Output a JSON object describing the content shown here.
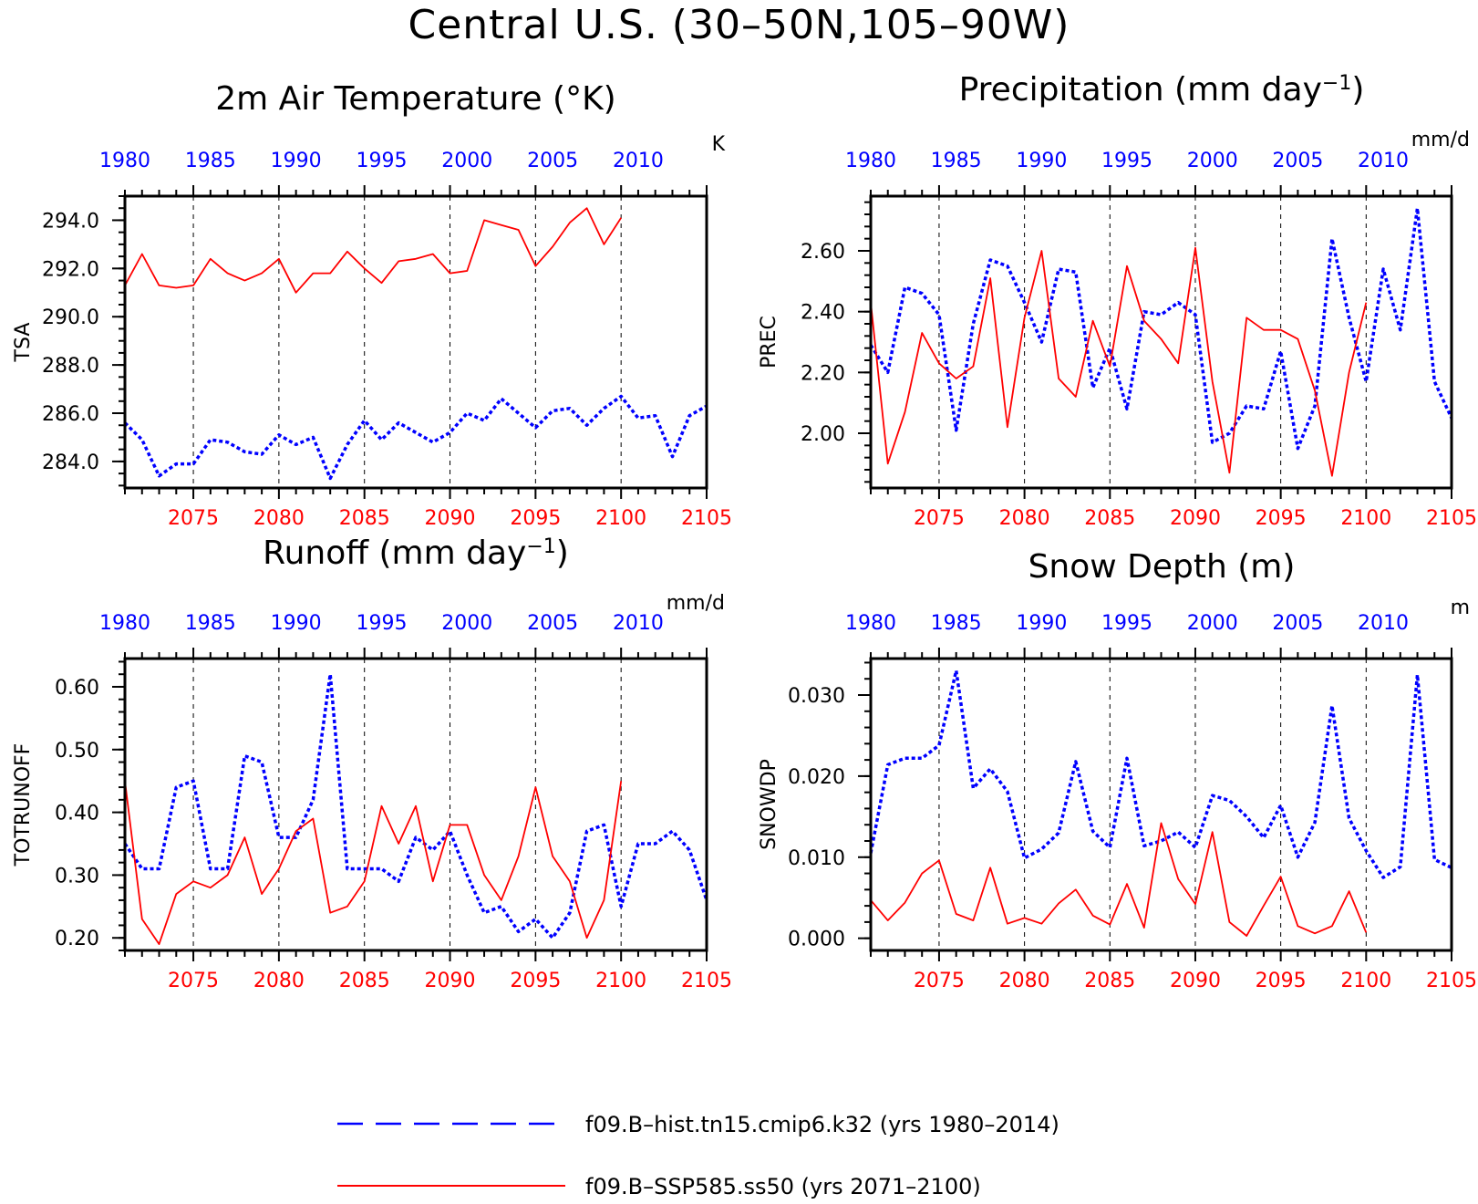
{
  "page_title": "Central U.S. (30–50N,105–90W)",
  "colors": {
    "hist": "#0000ff",
    "ssp": "#ff0000",
    "axis": "#000000"
  },
  "legend": [
    {
      "label": "f09.B–hist.tn15.cmip6.k32 (yrs 1980–2014)",
      "style": "dashed",
      "color": "#0000ff"
    },
    {
      "label": "f09.B–SSP585.ss50 (yrs 2071–2100)",
      "style": "solid",
      "color": "#ff0000"
    }
  ],
  "chart_data": [
    {
      "type": "line",
      "title": "2m Air Temperature (°K)",
      "title_superscript": "",
      "title_suffix": "",
      "ylabel": "TSA",
      "units": "K",
      "ylim": [
        282.9,
        295.0
      ],
      "yticks": [
        284,
        286,
        288,
        290,
        292,
        294
      ],
      "ytick_labels": [
        "284.0",
        "286.0",
        "288.0",
        "290.0",
        "292.0",
        "294.0"
      ],
      "yminor": 0.5,
      "top_ticks": [
        "1980",
        "1985",
        "1990",
        "1995",
        "2000",
        "2005",
        "2010"
      ],
      "bottom_ticks": [
        "2075",
        "2080",
        "2085",
        "2090",
        "2095",
        "2100",
        "2105"
      ],
      "series": [
        {
          "name": "f09.B–hist.tn15.cmip6.k32",
          "x_start": 1980,
          "values": [
            285.6,
            284.9,
            283.4,
            283.9,
            283.9,
            284.9,
            284.8,
            284.4,
            284.3,
            285.1,
            284.7,
            285.0,
            283.3,
            284.7,
            285.7,
            284.9,
            285.6,
            285.2,
            284.8,
            285.2,
            286.0,
            285.7,
            286.6,
            286.0,
            285.4,
            286.1,
            286.2,
            285.5,
            286.2,
            286.7,
            285.8,
            285.9,
            284.2,
            285.9,
            286.3
          ]
        },
        {
          "name": "f09.B–SSP585.ss50",
          "x_start": 2071,
          "values": [
            291.3,
            292.6,
            291.3,
            291.2,
            291.3,
            292.4,
            291.8,
            291.5,
            291.8,
            292.4,
            291.0,
            291.8,
            291.8,
            292.7,
            292.0,
            291.4,
            292.3,
            292.4,
            292.6,
            291.8,
            291.9,
            294.0,
            293.8,
            293.6,
            292.1,
            292.9,
            293.9,
            294.5,
            293.0,
            294.1
          ]
        }
      ]
    },
    {
      "type": "line",
      "title": "Precipitation (mm day",
      "title_superscript": "−1",
      "title_suffix": ")",
      "ylabel": "PREC",
      "units": "mm/d",
      "ylim": [
        1.82,
        2.78
      ],
      "yticks": [
        2.0,
        2.2,
        2.4,
        2.6
      ],
      "ytick_labels": [
        "2.00",
        "2.20",
        "2.40",
        "2.60"
      ],
      "yminor": 0.04,
      "top_ticks": [
        "1980",
        "1985",
        "1990",
        "1995",
        "2000",
        "2005",
        "2010"
      ],
      "bottom_ticks": [
        "2075",
        "2080",
        "2085",
        "2090",
        "2095",
        "2100",
        "2105"
      ],
      "series": [
        {
          "name": "f09.B–hist.tn15.cmip6.k32",
          "x_start": 1980,
          "values": [
            2.29,
            2.2,
            2.48,
            2.46,
            2.39,
            2.01,
            2.36,
            2.57,
            2.55,
            2.43,
            2.3,
            2.54,
            2.53,
            2.15,
            2.28,
            2.08,
            2.4,
            2.39,
            2.43,
            2.39,
            1.97,
            2.0,
            2.09,
            2.08,
            2.27,
            1.95,
            2.09,
            2.64,
            2.38,
            2.17,
            2.54,
            2.34,
            2.74,
            2.17,
            2.05
          ]
        },
        {
          "name": "f09.B–SSP585.ss50",
          "x_start": 2071,
          "values": [
            2.43,
            1.9,
            2.07,
            2.33,
            2.23,
            2.18,
            2.22,
            2.51,
            2.02,
            2.38,
            2.6,
            2.18,
            2.12,
            2.37,
            2.22,
            2.55,
            2.37,
            2.31,
            2.23,
            2.61,
            2.17,
            1.87,
            2.38,
            2.34,
            2.34,
            2.31,
            2.14,
            1.86,
            2.2,
            2.43
          ]
        }
      ]
    },
    {
      "type": "line",
      "title": "Runoff (mm day",
      "title_superscript": "−1",
      "title_suffix": ")",
      "ylabel": "TOTRUNOFF",
      "units": "mm/d",
      "ylim": [
        0.18,
        0.645
      ],
      "yticks": [
        0.2,
        0.3,
        0.4,
        0.5,
        0.6
      ],
      "ytick_labels": [
        "0.20",
        "0.30",
        "0.40",
        "0.50",
        "0.60"
      ],
      "yminor": 0.02,
      "top_ticks": [
        "1980",
        "1985",
        "1990",
        "1995",
        "2000",
        "2005",
        "2010"
      ],
      "bottom_ticks": [
        "2075",
        "2080",
        "2085",
        "2090",
        "2095",
        "2100",
        "2105"
      ],
      "series": [
        {
          "name": "f09.B–hist.tn15.cmip6.k32",
          "x_start": 1980,
          "values": [
            0.35,
            0.31,
            0.31,
            0.44,
            0.45,
            0.31,
            0.31,
            0.49,
            0.48,
            0.36,
            0.36,
            0.42,
            0.62,
            0.31,
            0.31,
            0.31,
            0.29,
            0.36,
            0.34,
            0.37,
            0.3,
            0.24,
            0.25,
            0.21,
            0.23,
            0.2,
            0.24,
            0.37,
            0.38,
            0.25,
            0.35,
            0.35,
            0.37,
            0.34,
            0.26
          ]
        },
        {
          "name": "f09.B–SSP585.ss50",
          "x_start": 2071,
          "values": [
            0.45,
            0.23,
            0.19,
            0.27,
            0.29,
            0.28,
            0.3,
            0.36,
            0.27,
            0.31,
            0.37,
            0.39,
            0.24,
            0.25,
            0.29,
            0.41,
            0.35,
            0.41,
            0.29,
            0.38,
            0.38,
            0.3,
            0.26,
            0.33,
            0.44,
            0.33,
            0.29,
            0.2,
            0.26,
            0.45
          ]
        }
      ]
    },
    {
      "type": "line",
      "title": "Snow Depth (m)",
      "title_superscript": "",
      "title_suffix": "",
      "ylabel": "SNOWDP",
      "units": "m",
      "ylim": [
        -0.0015,
        0.0345
      ],
      "yticks": [
        0.0,
        0.01,
        0.02,
        0.03
      ],
      "ytick_labels": [
        "0.000",
        "0.010",
        "0.020",
        "0.030"
      ],
      "yminor": 0.002,
      "top_ticks": [
        "1980",
        "1985",
        "1990",
        "1995",
        "2000",
        "2005",
        "2010"
      ],
      "bottom_ticks": [
        "2075",
        "2080",
        "2085",
        "2090",
        "2095",
        "2100",
        "2105"
      ],
      "series": [
        {
          "name": "f09.B–hist.tn15.cmip6.k32",
          "x_start": 1980,
          "values": [
            0.0105,
            0.0214,
            0.0222,
            0.0222,
            0.0238,
            0.033,
            0.0185,
            0.0209,
            0.0181,
            0.0099,
            0.011,
            0.013,
            0.0218,
            0.0132,
            0.0112,
            0.0222,
            0.0114,
            0.012,
            0.0131,
            0.0112,
            0.0176,
            0.017,
            0.015,
            0.0124,
            0.0164,
            0.01,
            0.0143,
            0.0287,
            0.0148,
            0.0108,
            0.0075,
            0.0088,
            0.0325,
            0.0097,
            0.0087
          ]
        },
        {
          "name": "f09.B–SSP585.ss50",
          "x_start": 2071,
          "values": [
            0.0047,
            0.0022,
            0.0044,
            0.008,
            0.0096,
            0.003,
            0.0022,
            0.0087,
            0.0018,
            0.0025,
            0.0018,
            0.0043,
            0.006,
            0.0028,
            0.0017,
            0.0067,
            0.0013,
            0.0142,
            0.0073,
            0.0042,
            0.0131,
            0.002,
            0.0003,
            0.004,
            0.0076,
            0.0015,
            0.0006,
            0.0015,
            0.0058,
            0.0007
          ]
        }
      ]
    }
  ]
}
